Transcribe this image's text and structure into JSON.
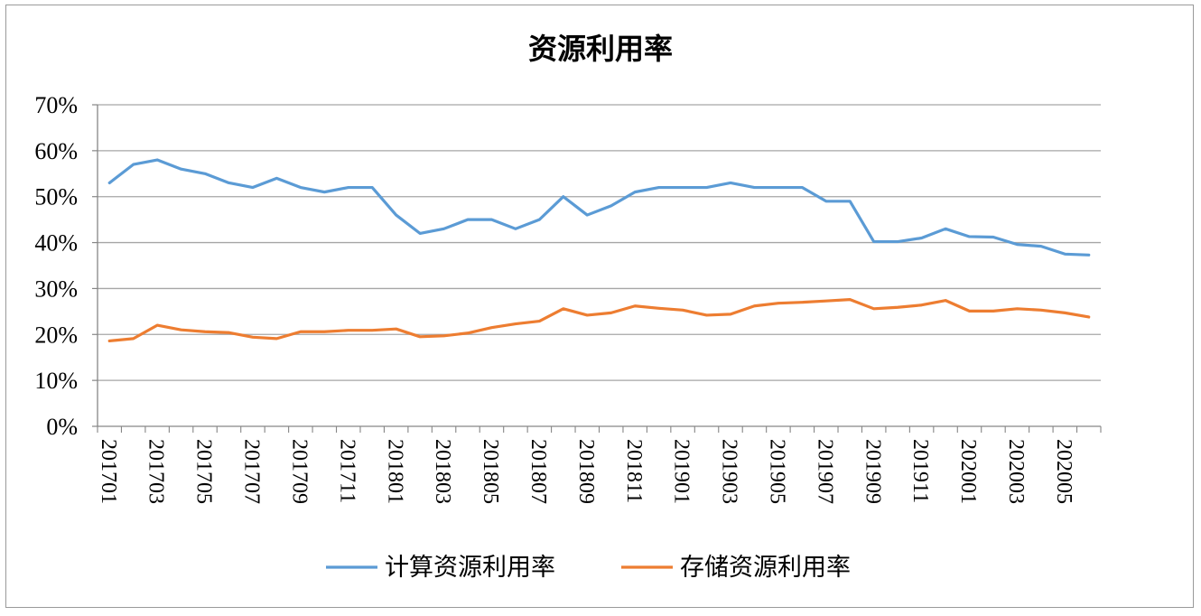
{
  "chart_data": {
    "type": "line",
    "title": "资源利用率",
    "xlabel": "",
    "ylabel": "",
    "ylim": [
      0,
      70
    ],
    "yticks": [
      "0%",
      "10%",
      "20%",
      "30%",
      "40%",
      "50%",
      "60%",
      "70%"
    ],
    "grid": true,
    "legend_position": "bottom",
    "categories": [
      "201701",
      "201702",
      "201703",
      "201704",
      "201705",
      "201706",
      "201707",
      "201708",
      "201709",
      "201710",
      "201711",
      "201712",
      "201801",
      "201802",
      "201803",
      "201804",
      "201805",
      "201806",
      "201807",
      "201808",
      "201809",
      "201810",
      "201811",
      "201812",
      "201901",
      "201902",
      "201903",
      "201904",
      "201905",
      "201906",
      "201907",
      "201908",
      "201909",
      "201910",
      "201911",
      "201912",
      "202001",
      "202002",
      "202003",
      "202004",
      "202005",
      "202006"
    ],
    "tick_labels": [
      "201701",
      "201703",
      "201705",
      "201707",
      "201709",
      "201711",
      "201801",
      "201803",
      "201805",
      "201807",
      "201809",
      "201811",
      "201901",
      "201903",
      "201905",
      "201907",
      "201909",
      "201911",
      "202001",
      "202003",
      "202005"
    ],
    "series": [
      {
        "name": "计算资源利用率",
        "color": "#5b9bd5",
        "values": [
          53,
          57,
          58,
          56,
          55,
          53,
          52,
          54,
          52,
          51,
          52,
          52,
          46,
          42,
          43,
          45,
          45,
          43,
          45,
          50,
          46,
          48,
          51,
          52,
          52,
          52,
          53,
          52,
          52,
          52,
          49,
          49,
          40.2,
          40.2,
          41,
          43,
          41.3,
          41.2,
          39.6,
          39.2,
          37.5,
          37.3
        ]
      },
      {
        "name": "存储资源利用率",
        "color": "#ed7d31",
        "values": [
          18.6,
          19.1,
          22,
          21,
          20.6,
          20.4,
          19.4,
          19.1,
          20.6,
          20.6,
          20.9,
          20.9,
          21.2,
          19.5,
          19.7,
          20.3,
          21.5,
          22.3,
          22.9,
          25.6,
          24.2,
          24.7,
          26.2,
          25.7,
          25.3,
          24.2,
          24.4,
          26.2,
          26.8,
          27,
          27.3,
          27.6,
          25.6,
          25.9,
          26.4,
          27.4,
          25.1,
          25.1,
          25.6,
          25.3,
          24.7,
          23.8
        ]
      }
    ]
  }
}
